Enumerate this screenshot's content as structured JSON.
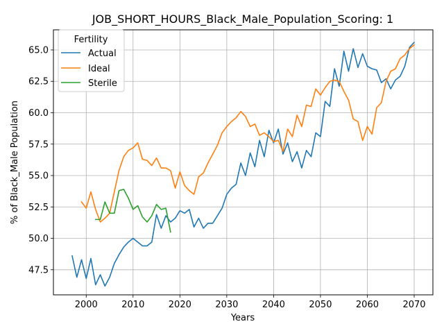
{
  "chart_data": {
    "type": "line",
    "title": "JOB_SHORT_HOURS_Black_Male_Population_Scoring: 1",
    "xlabel": "Years",
    "ylabel": "% of Black_Male Population",
    "xlim": [
      1993,
      2074
    ],
    "ylim": [
      45.5,
      66.6
    ],
    "xticks": [
      2000,
      2010,
      2020,
      2030,
      2040,
      2050,
      2060,
      2070
    ],
    "yticks": [
      47.5,
      50.0,
      52.5,
      55.0,
      57.5,
      60.0,
      62.5,
      65.0
    ],
    "xtick_labels": [
      "2000",
      "2010",
      "2020",
      "2030",
      "2040",
      "2050",
      "2060",
      "2070"
    ],
    "ytick_labels": [
      "47.5",
      "50.0",
      "52.5",
      "55.0",
      "57.5",
      "60.0",
      "62.5",
      "65.0"
    ],
    "grid": true,
    "legend": {
      "title": "Fertility",
      "placement": "top-left"
    },
    "series": [
      {
        "name": "Actual",
        "color": "#1f77b4",
        "x": [
          1997,
          1998,
          1999,
          2000,
          2001,
          2002,
          2003,
          2004,
          2005,
          2006,
          2007,
          2008,
          2009,
          2010,
          2011,
          2012,
          2013,
          2014,
          2015,
          2016,
          2017,
          2018,
          2019,
          2020,
          2021,
          2022,
          2023,
          2024,
          2025,
          2026,
          2027,
          2028,
          2029,
          2030,
          2031,
          2032,
          2033,
          2034,
          2035,
          2036,
          2037,
          2038,
          2039,
          2040,
          2041,
          2042,
          2043,
          2044,
          2045,
          2046,
          2047,
          2048,
          2049,
          2050,
          2051,
          2052,
          2053,
          2054,
          2055,
          2056,
          2057,
          2058,
          2059,
          2060,
          2061,
          2062,
          2063,
          2064,
          2065,
          2066,
          2067,
          2068,
          2069,
          2070
        ],
        "values": [
          48.6,
          46.9,
          48.3,
          46.8,
          48.4,
          46.3,
          47.1,
          46.2,
          46.9,
          48.0,
          48.7,
          49.3,
          49.7,
          50.0,
          49.7,
          49.4,
          49.4,
          49.7,
          51.9,
          50.8,
          51.8,
          51.3,
          51.6,
          52.2,
          52.0,
          52.3,
          50.9,
          51.6,
          50.8,
          51.2,
          51.2,
          51.8,
          52.4,
          53.5,
          54.0,
          54.3,
          56.0,
          55.0,
          56.8,
          55.7,
          57.8,
          56.5,
          58.6,
          57.6,
          58.7,
          56.7,
          57.6,
          56.1,
          56.9,
          55.6,
          57.0,
          56.5,
          58.4,
          58.1,
          60.9,
          60.5,
          63.5,
          62.1,
          64.9,
          63.3,
          65.1,
          63.6,
          64.7,
          63.7,
          63.5,
          63.4,
          62.4,
          62.7,
          61.9,
          62.6,
          62.9,
          63.7,
          65.2,
          65.6
        ]
      },
      {
        "name": "Ideal",
        "color": "#ff7f0e",
        "x": [
          1999,
          2000,
          2001,
          2002,
          2003,
          2004,
          2005,
          2006,
          2007,
          2008,
          2009,
          2010,
          2011,
          2012,
          2013,
          2014,
          2015,
          2016,
          2017,
          2018,
          2019,
          2020,
          2021,
          2022,
          2023,
          2024,
          2025,
          2026,
          2027,
          2028,
          2029,
          2030,
          2031,
          2032,
          2033,
          2034,
          2035,
          2036,
          2037,
          2038,
          2039,
          2040,
          2041,
          2042,
          2043,
          2044,
          2045,
          2046,
          2047,
          2048,
          2049,
          2050,
          2051,
          2052,
          2053,
          2054,
          2055,
          2056,
          2057,
          2058,
          2059,
          2060,
          2061,
          2062,
          2063,
          2064,
          2065,
          2066,
          2067,
          2068,
          2069,
          2070
        ],
        "values": [
          52.9,
          52.4,
          53.7,
          52.3,
          51.3,
          51.6,
          52.0,
          53.7,
          55.4,
          56.5,
          57.0,
          57.2,
          57.6,
          56.3,
          56.2,
          55.8,
          56.4,
          55.6,
          55.6,
          55.4,
          54.0,
          55.3,
          54.2,
          53.8,
          53.5,
          54.9,
          55.2,
          56.0,
          56.7,
          57.4,
          58.4,
          58.9,
          59.3,
          59.6,
          60.1,
          59.7,
          58.9,
          59.1,
          58.2,
          58.4,
          58.1,
          57.7,
          57.8,
          56.9,
          58.7,
          58.1,
          59.8,
          58.9,
          60.6,
          60.5,
          61.9,
          61.4,
          62.0,
          62.5,
          62.6,
          62.5,
          61.7,
          61.0,
          59.5,
          59.3,
          57.8,
          58.9,
          58.3,
          60.4,
          60.8,
          62.5,
          63.3,
          63.5,
          64.3,
          64.6,
          65.1,
          65.4
        ]
      },
      {
        "name": "Sterile",
        "color": "#2ca02c",
        "x": [
          2002,
          2003,
          2004,
          2005,
          2006,
          2007,
          2008,
          2009,
          2010,
          2011,
          2012,
          2013,
          2014,
          2015,
          2016,
          2017,
          2018
        ],
        "values": [
          51.5,
          51.5,
          52.9,
          52.0,
          52.0,
          53.8,
          53.9,
          53.2,
          52.3,
          52.6,
          51.7,
          51.3,
          51.8,
          52.7,
          52.3,
          52.4,
          50.5
        ]
      }
    ]
  }
}
